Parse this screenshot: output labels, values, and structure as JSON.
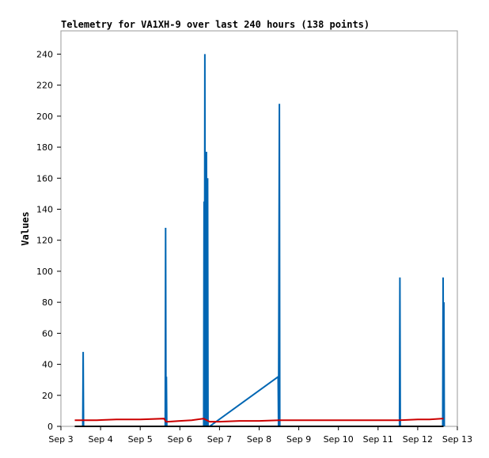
{
  "chart_data": {
    "type": "line",
    "title": "Telemetry for VA1XH-9 over last 240 hours (138 points)",
    "xlabel": "",
    "ylabel": "Values",
    "x_ticks": [
      "Sep 3",
      "Sep 4",
      "Sep 5",
      "Sep 6",
      "Sep 7",
      "Sep 8",
      "Sep 9",
      "Sep 10",
      "Sep 11",
      "Sep 12",
      "Sep 13"
    ],
    "xlim": [
      3,
      13
    ],
    "ylim": [
      0,
      255
    ],
    "y_ticks": [
      0,
      20,
      40,
      60,
      80,
      100,
      120,
      140,
      160,
      180,
      200,
      220,
      240
    ],
    "grid": false,
    "colors": {
      "series1": "#0066b3",
      "series2": "#cc0000",
      "series3": "#000000"
    },
    "series": [
      {
        "color": "#0066b3",
        "x": [
          3.55,
          3.56,
          3.57,
          5.63,
          5.64,
          5.65,
          5.66,
          5.67,
          6.6,
          6.61,
          6.62,
          6.63,
          6.64,
          6.65,
          6.66,
          6.67,
          6.68,
          6.69,
          6.7,
          6.71,
          6.72,
          6.73,
          6.74,
          6.75,
          8.48,
          8.49,
          8.5,
          8.51,
          8.52,
          8.53,
          11.54,
          11.55,
          11.56,
          12.63,
          12.64,
          12.65,
          12.66,
          12.67
        ],
        "y": [
          0,
          48,
          0,
          0,
          128,
          0,
          32,
          0,
          0,
          145,
          0,
          240,
          30,
          148,
          0,
          177,
          88,
          0,
          160,
          0,
          0,
          0,
          0,
          0,
          32,
          0,
          112,
          208,
          0,
          0,
          0,
          96,
          0,
          0,
          96,
          0,
          80,
          0
        ]
      },
      {
        "color": "#cc0000",
        "x": [
          3.35,
          3.9,
          4.4,
          5.0,
          5.6,
          5.65,
          5.7,
          6.0,
          6.3,
          6.6,
          6.75,
          7.0,
          7.5,
          8.0,
          8.5,
          9.0,
          10.0,
          11.0,
          11.55,
          12.0,
          12.3,
          12.6,
          12.65
        ],
        "y": [
          4,
          4,
          4.5,
          4.5,
          5,
          3,
          3,
          3.5,
          4,
          5,
          3,
          3,
          3.5,
          3.5,
          4,
          4,
          4,
          4,
          4,
          4.5,
          4.5,
          5,
          5
        ]
      },
      {
        "color": "#000000",
        "x": [
          3.35,
          12.65
        ],
        "y": [
          0,
          0
        ]
      }
    ]
  }
}
